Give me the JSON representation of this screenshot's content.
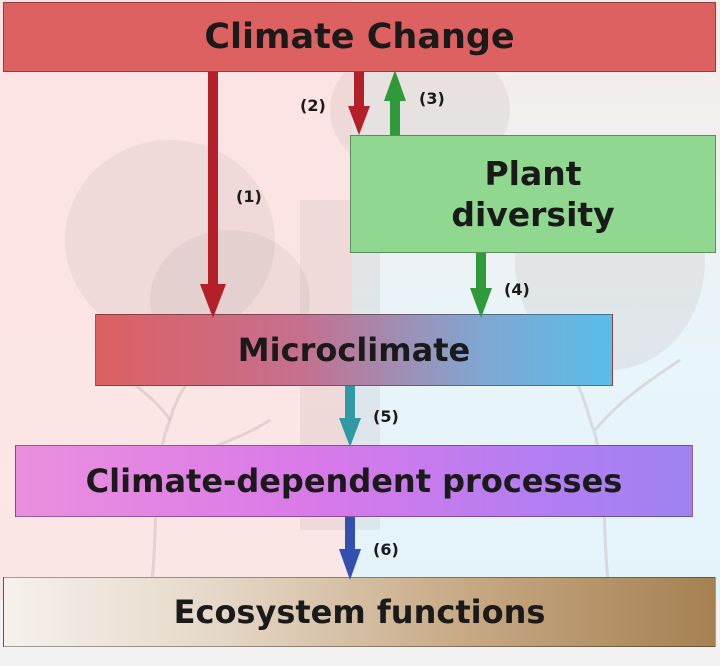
{
  "nodes": {
    "climate_change": "Climate Change",
    "plant_diversity_line1": "Plant",
    "plant_diversity_line2": "diversity",
    "microclimate": "Microclimate",
    "processes": "Climate-dependent processes",
    "ecosystem": "Ecosystem functions"
  },
  "edges": [
    {
      "label": "(1)",
      "from": "Climate Change",
      "to": "Microclimate",
      "color": "#b3202a"
    },
    {
      "label": "(2)",
      "from": "Climate Change",
      "to": "Plant diversity",
      "color": "#b3202a"
    },
    {
      "label": "(3)",
      "from": "Plant diversity",
      "to": "Climate Change",
      "color": "#2f9a3a"
    },
    {
      "label": "(4)",
      "from": "Plant diversity",
      "to": "Microclimate",
      "color": "#2f9a3a"
    },
    {
      "label": "(5)",
      "from": "Microclimate",
      "to": "Climate-dependent processes",
      "color": "#2f9aa5"
    },
    {
      "label": "(6)",
      "from": "Climate-dependent processes",
      "to": "Ecosystem functions",
      "color": "#3350b0"
    }
  ],
  "colors": {
    "climate": "#dd6160",
    "plant": "#90d88f",
    "micro_left": "#dc6062",
    "micro_right": "#59bde9",
    "proc_left": "#ea8fde",
    "proc_right": "#9f82f0",
    "eco_left": "#f6f1ec",
    "eco_right": "#a58152"
  }
}
